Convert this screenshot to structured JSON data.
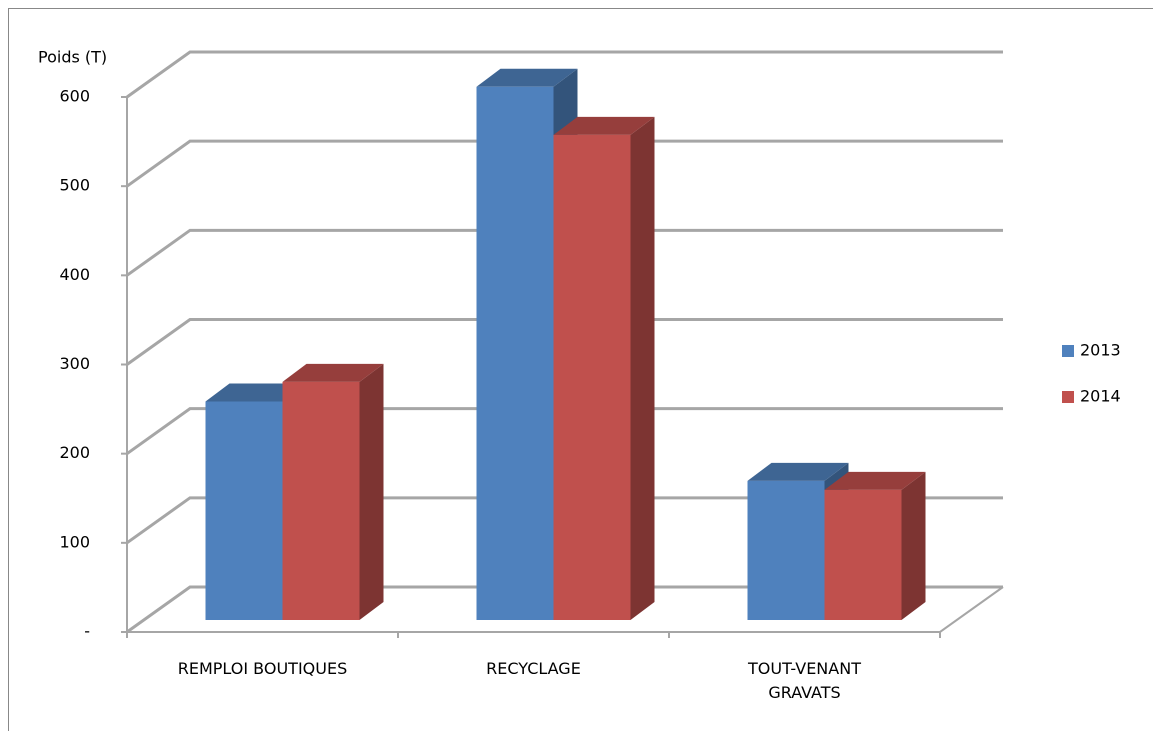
{
  "chart_data": {
    "type": "bar3d",
    "y_label": "Poids (T)",
    "categories": [
      "REMPLOI BOUTIQUES",
      "RECYCLAGE",
      "TOUT-VENANT GRAVATS"
    ],
    "series": [
      {
        "name": "2013",
        "color": "#4f81bd",
        "values": [
          245,
          598,
          156
        ]
      },
      {
        "name": "2014",
        "color": "#c0504d",
        "values": [
          267,
          544,
          146
        ]
      }
    ],
    "ylim": [
      0,
      600
    ],
    "yticks": [
      {
        "value": 0,
        "label": "-"
      },
      100,
      200,
      300,
      400,
      500,
      600
    ],
    "grid": true,
    "legend": "right"
  }
}
